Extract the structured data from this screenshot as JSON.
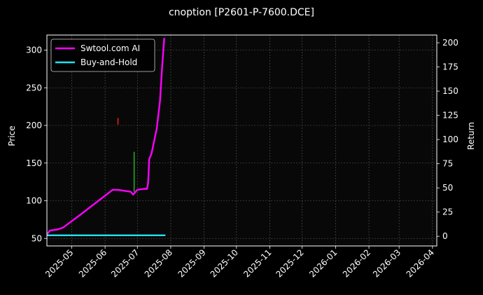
{
  "chart_data": {
    "type": "line",
    "title": "cnoption [P2601-P-7600.DCE]",
    "ylabel": "Price",
    "y2label": "Return",
    "xlim": [
      "2025-04-08",
      "2026-04-05"
    ],
    "ylim": [
      40,
      320
    ],
    "y2lim": [
      -10,
      208
    ],
    "x_ticks": [
      "2025-05",
      "2025-06",
      "2025-07",
      "2025-08",
      "2025-09",
      "2025-10",
      "2025-11",
      "2025-12",
      "2026-01",
      "2026-02",
      "2026-03",
      "2026-04"
    ],
    "x_tick_dates": [
      "2025-05-01",
      "2025-06-01",
      "2025-07-01",
      "2025-08-01",
      "2025-09-01",
      "2025-10-01",
      "2025-11-01",
      "2025-12-01",
      "2026-01-01",
      "2026-02-01",
      "2026-03-01",
      "2026-04-01"
    ],
    "y_ticks": [
      50,
      100,
      150,
      200,
      250,
      300
    ],
    "y2_ticks": [
      0,
      25,
      50,
      75,
      100,
      125,
      150,
      175,
      200
    ],
    "grid": true,
    "legend_position": "top-left",
    "series": [
      {
        "name": "Swtool.com AI",
        "color": "#ff00ff",
        "axis": "right",
        "points": [
          [
            "2025-04-08",
            2
          ],
          [
            "2025-04-11",
            6
          ],
          [
            "2025-04-18",
            7
          ],
          [
            "2025-04-23",
            9
          ],
          [
            "2025-05-10",
            23
          ],
          [
            "2025-05-25",
            36
          ],
          [
            "2025-06-08",
            48
          ],
          [
            "2025-06-13",
            48
          ],
          [
            "2025-06-25",
            46
          ],
          [
            "2025-06-27",
            43
          ],
          [
            "2025-07-01",
            48
          ],
          [
            "2025-07-07",
            49
          ],
          [
            "2025-07-10",
            49
          ],
          [
            "2025-07-11",
            55
          ],
          [
            "2025-07-12",
            80
          ],
          [
            "2025-07-14",
            85
          ],
          [
            "2025-07-19",
            111
          ],
          [
            "2025-07-22",
            140
          ],
          [
            "2025-07-24",
            175
          ],
          [
            "2025-07-26",
            205
          ]
        ]
      },
      {
        "name": "Buy-and-Hold",
        "color": "#22e0f0",
        "axis": "right",
        "points": [
          [
            "2025-04-08",
            1
          ],
          [
            "2025-05-15",
            1
          ],
          [
            "2025-06-20",
            1
          ],
          [
            "2025-07-27",
            1
          ]
        ]
      }
    ],
    "signals": [
      {
        "color": "#e02020",
        "x": "2025-06-13",
        "y_from": 201,
        "y_to": 210
      },
      {
        "color": "#22aa22",
        "x": "2025-06-28",
        "y_from": 112,
        "y_to": 165
      }
    ]
  }
}
